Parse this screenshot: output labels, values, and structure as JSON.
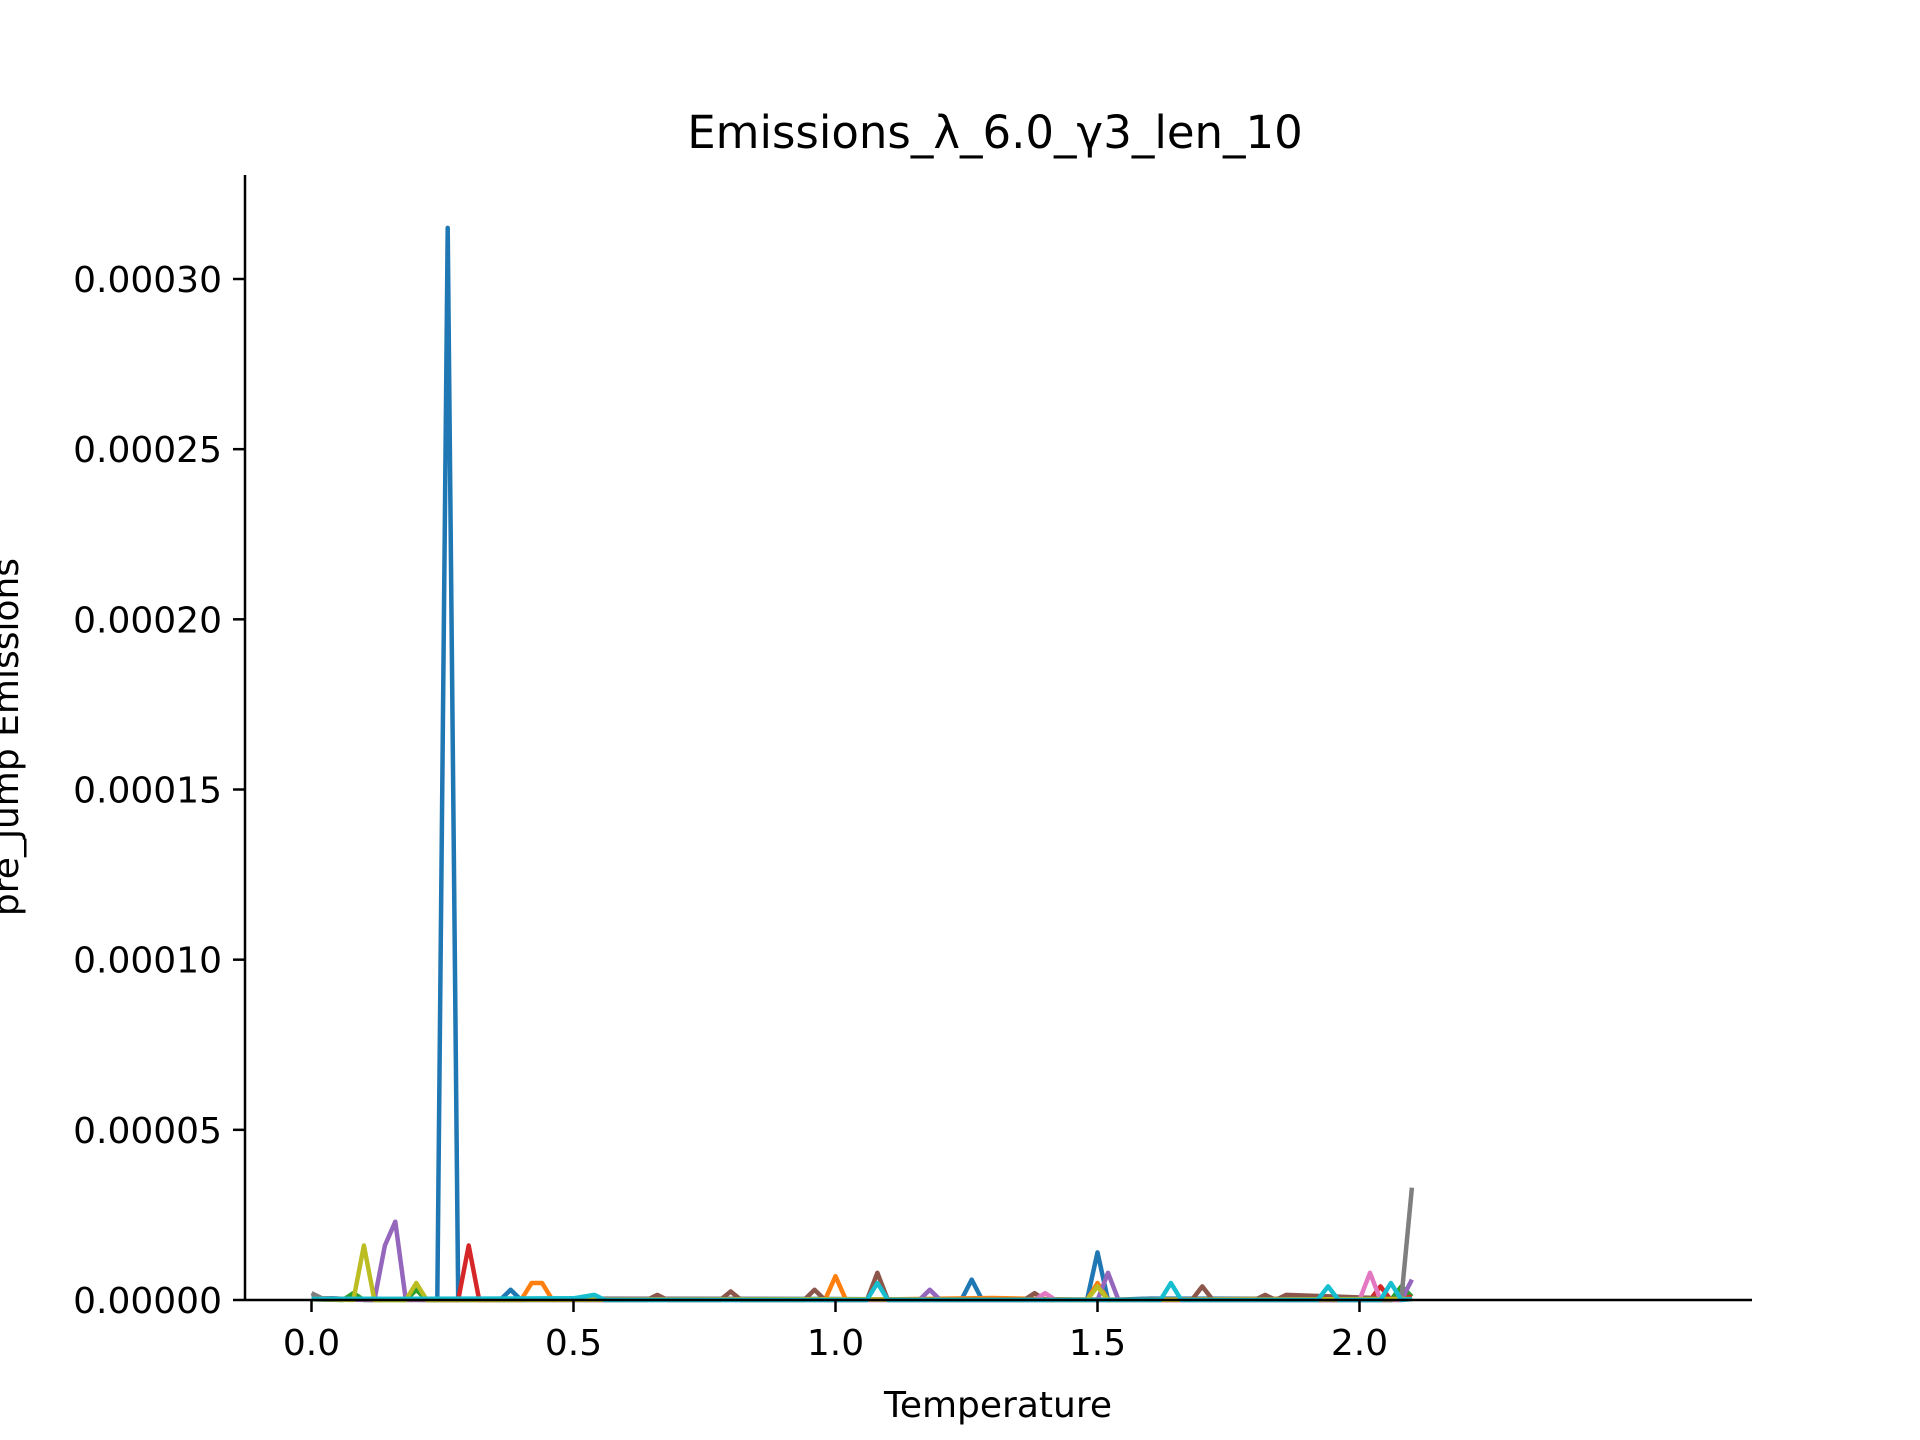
{
  "chart_data": {
    "type": "line",
    "title": "Emissions_λ_6.0_γ3_len_10",
    "xlabel": "Temperature",
    "ylabel": "pre_jump Emissions",
    "xlim": [
      -0.1,
      2.2
    ],
    "ylim": [
      0.0,
      0.00033
    ],
    "xticks": [
      0.0,
      0.5,
      1.0,
      1.5,
      2.0
    ],
    "xtick_labels": [
      "0.0",
      "0.5",
      "1.0",
      "1.5",
      "2.0"
    ],
    "yticks": [
      0.0,
      5e-05,
      0.0001,
      0.00015,
      0.0002,
      0.00025,
      0.0003
    ],
    "ytick_labels": [
      "0.00000",
      "0.00005",
      "0.00010",
      "0.00015",
      "0.00020",
      "0.00025",
      "0.00030"
    ],
    "grid": false,
    "legend": "none",
    "series": [
      {
        "color": "#1f77b4",
        "x": [
          0.0,
          0.02,
          0.04,
          0.06,
          0.24,
          0.26,
          0.28,
          0.3,
          0.36,
          0.38,
          0.4,
          0.5,
          1.0,
          1.24,
          1.26,
          1.28,
          1.48,
          1.5,
          1.52,
          1.6,
          2.1
        ],
        "y": [
          5e-07,
          4e-07,
          5e-07,
          3e-07,
          0.0,
          0.000315,
          0.0,
          3e-07,
          0.0,
          3e-06,
          0.0,
          4e-07,
          3e-07,
          0.0,
          6e-06,
          0.0,
          0.0,
          1.4e-05,
          0.0,
          4e-07,
          3e-07
        ]
      },
      {
        "color": "#ff7f0e",
        "x": [
          0.0,
          0.4,
          0.42,
          0.44,
          0.46,
          0.5,
          0.98,
          1.0,
          1.02,
          1.3,
          1.48,
          1.5,
          1.52,
          1.9,
          2.1
        ],
        "y": [
          3e-07,
          0.0,
          5e-06,
          5e-06,
          0.0,
          3e-07,
          0.0,
          7e-06,
          0.0,
          6e-07,
          0.0,
          5e-06,
          0.0,
          4e-07,
          3e-07
        ]
      },
      {
        "color": "#2ca02c",
        "x": [
          0.0,
          0.06,
          0.08,
          0.1,
          0.18,
          0.2,
          0.22,
          1.0,
          2.06,
          2.08,
          2.1
        ],
        "y": [
          2e-07,
          0.0,
          2e-06,
          0.0,
          0.0,
          3e-06,
          0.0,
          2e-07,
          0.0,
          4e-06,
          1e-06
        ]
      },
      {
        "color": "#d62728",
        "x": [
          0.0,
          0.28,
          0.3,
          0.32,
          0.6,
          2.02,
          2.04,
          2.06,
          2.1
        ],
        "y": [
          3e-07,
          0.0,
          1.6e-05,
          0.0,
          3e-07,
          0.0,
          4e-06,
          0.0,
          1e-06
        ]
      },
      {
        "color": "#9467bd",
        "x": [
          0.0,
          0.12,
          0.14,
          0.16,
          0.18,
          1.16,
          1.18,
          1.2,
          1.5,
          1.52,
          1.54,
          2.08,
          2.1
        ],
        "y": [
          2e-07,
          0.0,
          1.6e-05,
          2.3e-05,
          0.0,
          0.0,
          3e-06,
          0.0,
          0.0,
          8e-06,
          0.0,
          0.0,
          6e-06
        ]
      },
      {
        "color": "#8c564b",
        "x": [
          0.0,
          0.64,
          0.66,
          0.68,
          0.78,
          0.8,
          0.82,
          0.94,
          0.96,
          0.98,
          1.06,
          1.08,
          1.1,
          1.36,
          1.38,
          1.4,
          1.68,
          1.7,
          1.72,
          1.8,
          1.82,
          1.84,
          1.86,
          2.1
        ],
        "y": [
          2e-07,
          0.0,
          1.5e-06,
          0.0,
          0.0,
          2.5e-06,
          0.0,
          0.0,
          3e-06,
          0.0,
          0.0,
          8e-06,
          0.0,
          0.0,
          2e-06,
          0.0,
          0.0,
          4e-06,
          0.0,
          0.0,
          1.5e-06,
          0.0,
          1.5e-06,
          2e-07
        ]
      },
      {
        "color": "#e377c2",
        "x": [
          0.0,
          1.38,
          1.4,
          1.42,
          2.0,
          2.02,
          2.04,
          2.1
        ],
        "y": [
          2e-07,
          0.0,
          2e-06,
          0.0,
          0.0,
          8e-06,
          0.0,
          2e-07
        ]
      },
      {
        "color": "#7f7f7f",
        "x": [
          0.0,
          0.02,
          0.08,
          2.06,
          2.08,
          2.1
        ],
        "y": [
          2e-06,
          5e-07,
          3e-07,
          0.0,
          5e-07,
          3.3e-05
        ]
      },
      {
        "color": "#bcbd22",
        "x": [
          0.0,
          0.08,
          0.1,
          0.12,
          0.14,
          0.18,
          0.2,
          0.22,
          1.0,
          1.48,
          1.5,
          1.52,
          2.1
        ],
        "y": [
          3e-07,
          0.0,
          1.6e-05,
          0.0,
          0.0,
          0.0,
          5e-06,
          0.0,
          2e-07,
          0.0,
          4e-06,
          0.0,
          3e-07
        ]
      },
      {
        "color": "#17becf",
        "x": [
          0.0,
          0.5,
          0.54,
          0.56,
          1.06,
          1.08,
          1.1,
          1.62,
          1.64,
          1.66,
          1.92,
          1.94,
          1.96,
          2.04,
          2.06,
          2.08,
          2.1
        ],
        "y": [
          3e-07,
          5e-07,
          1.5e-06,
          0.0,
          0.0,
          5e-06,
          0.0,
          0.0,
          5e-06,
          0.0,
          0.0,
          4e-06,
          0.0,
          0.0,
          5e-06,
          0.0,
          3e-07
        ]
      }
    ]
  }
}
